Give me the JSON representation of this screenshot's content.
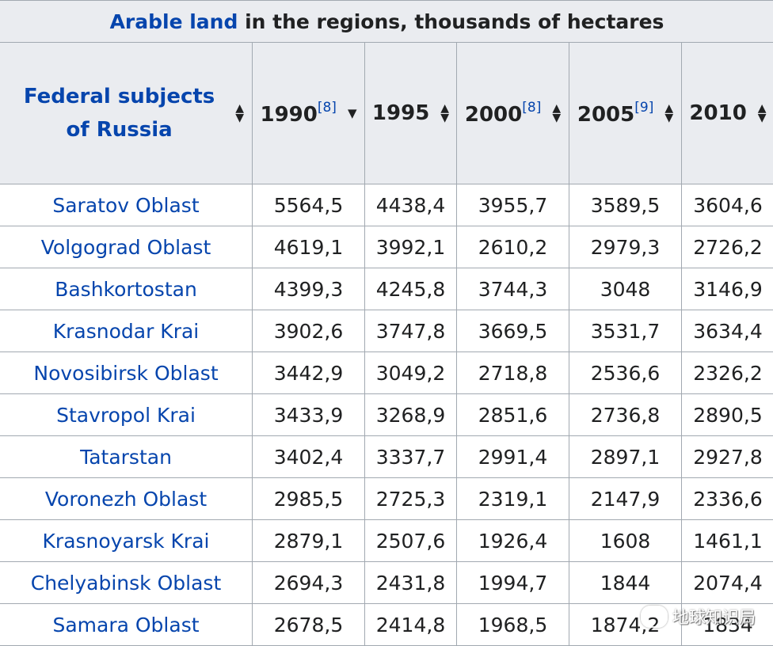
{
  "caption": {
    "link_text": "Arable land",
    "rest_text": " in the regions, thousands of hectares"
  },
  "header": {
    "first": "Federal subjects of Russia",
    "years": [
      {
        "label": "1990",
        "ref": "[8]"
      },
      {
        "label": "1995",
        "ref": ""
      },
      {
        "label": "2000",
        "ref": "[8]"
      },
      {
        "label": "2005",
        "ref": "[9]"
      },
      {
        "label": "2010",
        "ref": ""
      }
    ]
  },
  "rows": [
    {
      "region": "Saratov Oblast",
      "v": [
        "5564,5",
        "4438,4",
        "3955,7",
        "3589,5",
        "3604,6"
      ]
    },
    {
      "region": "Volgograd Oblast",
      "v": [
        "4619,1",
        "3992,1",
        "2610,2",
        "2979,3",
        "2726,2"
      ]
    },
    {
      "region": "Bashkortostan",
      "v": [
        "4399,3",
        "4245,8",
        "3744,3",
        "3048",
        "3146,9"
      ]
    },
    {
      "region": "Krasnodar Krai",
      "v": [
        "3902,6",
        "3747,8",
        "3669,5",
        "3531,7",
        "3634,4"
      ]
    },
    {
      "region": "Novosibirsk Oblast",
      "v": [
        "3442,9",
        "3049,2",
        "2718,8",
        "2536,6",
        "2326,2"
      ]
    },
    {
      "region": "Stavropol Krai",
      "v": [
        "3433,9",
        "3268,9",
        "2851,6",
        "2736,8",
        "2890,5"
      ]
    },
    {
      "region": "Tatarstan",
      "v": [
        "3402,4",
        "3337,7",
        "2991,4",
        "2897,1",
        "2927,8"
      ]
    },
    {
      "region": "Voronezh Oblast",
      "v": [
        "2985,5",
        "2725,3",
        "2319,1",
        "2147,9",
        "2336,6"
      ]
    },
    {
      "region": "Krasnoyarsk Krai",
      "v": [
        "2879,1",
        "2507,6",
        "1926,4",
        "1608",
        "1461,1"
      ]
    },
    {
      "region": "Chelyabinsk Oblast",
      "v": [
        "2694,3",
        "2431,8",
        "1994,7",
        "1844",
        "2074,4"
      ]
    },
    {
      "region": "Samara Oblast",
      "v": [
        "2678,5",
        "2414,8",
        "1968,5",
        "1874,2",
        "1834"
      ]
    }
  ],
  "watermark": {
    "text": "地球知识局"
  }
}
